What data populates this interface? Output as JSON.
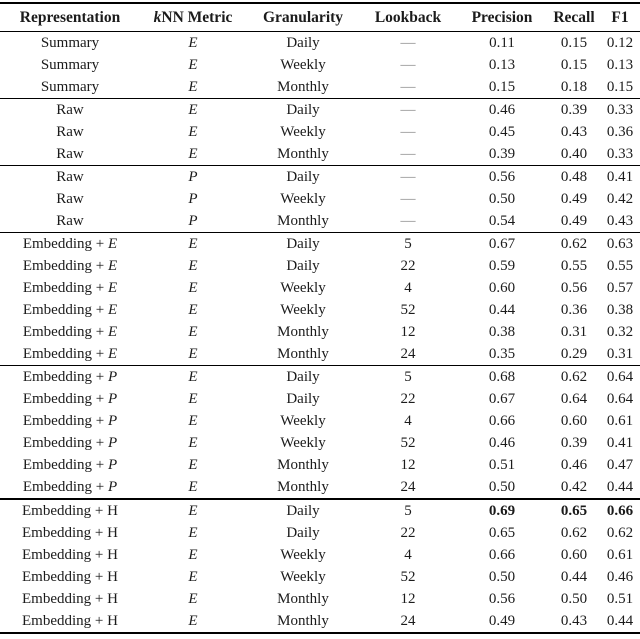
{
  "page": {
    "background": "#ffffff",
    "text_color": "#1b1b1b",
    "rule_color": "#000000",
    "dash_color": "#8a8a8a"
  },
  "table": {
    "em_dash": "—",
    "columns": [
      {
        "italic_prefix": "",
        "label": "Representation"
      },
      {
        "italic_prefix": "k",
        "label": "NN Metric"
      },
      {
        "italic_prefix": "",
        "label": "Granularity"
      },
      {
        "italic_prefix": "",
        "label": "Lookback"
      },
      {
        "italic_prefix": "",
        "label": "Precision"
      },
      {
        "italic_prefix": "",
        "label": "Recall"
      },
      {
        "italic_prefix": "",
        "label": "F1"
      }
    ],
    "groups": [
      {
        "rows": [
          {
            "rep": "Summary",
            "rep_italic": "",
            "metric": "E",
            "granularity": "Daily",
            "lookback": "—",
            "precision": "0.11",
            "recall": "0.15",
            "f1": "0.12",
            "bold_metrics": false
          },
          {
            "rep": "Summary",
            "rep_italic": "",
            "metric": "E",
            "granularity": "Weekly",
            "lookback": "—",
            "precision": "0.13",
            "recall": "0.15",
            "f1": "0.13",
            "bold_metrics": false
          },
          {
            "rep": "Summary",
            "rep_italic": "",
            "metric": "E",
            "granularity": "Monthly",
            "lookback": "—",
            "precision": "0.15",
            "recall": "0.18",
            "f1": "0.15",
            "bold_metrics": false
          }
        ]
      },
      {
        "rows": [
          {
            "rep": "Raw",
            "rep_italic": "",
            "metric": "E",
            "granularity": "Daily",
            "lookback": "—",
            "precision": "0.46",
            "recall": "0.39",
            "f1": "0.33",
            "bold_metrics": false
          },
          {
            "rep": "Raw",
            "rep_italic": "",
            "metric": "E",
            "granularity": "Weekly",
            "lookback": "—",
            "precision": "0.45",
            "recall": "0.43",
            "f1": "0.36",
            "bold_metrics": false
          },
          {
            "rep": "Raw",
            "rep_italic": "",
            "metric": "E",
            "granularity": "Monthly",
            "lookback": "—",
            "precision": "0.39",
            "recall": "0.40",
            "f1": "0.33",
            "bold_metrics": false
          }
        ]
      },
      {
        "rows": [
          {
            "rep": "Raw",
            "rep_italic": "",
            "metric": "P",
            "granularity": "Daily",
            "lookback": "—",
            "precision": "0.56",
            "recall": "0.48",
            "f1": "0.41",
            "bold_metrics": false
          },
          {
            "rep": "Raw",
            "rep_italic": "",
            "metric": "P",
            "granularity": "Weekly",
            "lookback": "—",
            "precision": "0.50",
            "recall": "0.49",
            "f1": "0.42",
            "bold_metrics": false
          },
          {
            "rep": "Raw",
            "rep_italic": "",
            "metric": "P",
            "granularity": "Monthly",
            "lookback": "—",
            "precision": "0.54",
            "recall": "0.49",
            "f1": "0.43",
            "bold_metrics": false
          }
        ]
      },
      {
        "rows": [
          {
            "rep": "Embedding + ",
            "rep_italic": "E",
            "metric": "E",
            "granularity": "Daily",
            "lookback": "5",
            "precision": "0.67",
            "recall": "0.62",
            "f1": "0.63",
            "bold_metrics": false
          },
          {
            "rep": "Embedding + ",
            "rep_italic": "E",
            "metric": "E",
            "granularity": "Daily",
            "lookback": "22",
            "precision": "0.59",
            "recall": "0.55",
            "f1": "0.55",
            "bold_metrics": false
          },
          {
            "rep": "Embedding + ",
            "rep_italic": "E",
            "metric": "E",
            "granularity": "Weekly",
            "lookback": "4",
            "precision": "0.60",
            "recall": "0.56",
            "f1": "0.57",
            "bold_metrics": false
          },
          {
            "rep": "Embedding + ",
            "rep_italic": "E",
            "metric": "E",
            "granularity": "Weekly",
            "lookback": "52",
            "precision": "0.44",
            "recall": "0.36",
            "f1": "0.38",
            "bold_metrics": false
          },
          {
            "rep": "Embedding + ",
            "rep_italic": "E",
            "metric": "E",
            "granularity": "Monthly",
            "lookback": "12",
            "precision": "0.38",
            "recall": "0.31",
            "f1": "0.32",
            "bold_metrics": false
          },
          {
            "rep": "Embedding + ",
            "rep_italic": "E",
            "metric": "E",
            "granularity": "Monthly",
            "lookback": "24",
            "precision": "0.35",
            "recall": "0.29",
            "f1": "0.31",
            "bold_metrics": false
          }
        ]
      },
      {
        "rows": [
          {
            "rep": "Embedding + ",
            "rep_italic": "P",
            "metric": "E",
            "granularity": "Daily",
            "lookback": "5",
            "precision": "0.68",
            "recall": "0.62",
            "f1": "0.64",
            "bold_metrics": false
          },
          {
            "rep": "Embedding + ",
            "rep_italic": "P",
            "metric": "E",
            "granularity": "Daily",
            "lookback": "22",
            "precision": "0.67",
            "recall": "0.64",
            "f1": "0.64",
            "bold_metrics": false
          },
          {
            "rep": "Embedding + ",
            "rep_italic": "P",
            "metric": "E",
            "granularity": "Weekly",
            "lookback": "4",
            "precision": "0.66",
            "recall": "0.60",
            "f1": "0.61",
            "bold_metrics": false
          },
          {
            "rep": "Embedding + ",
            "rep_italic": "P",
            "metric": "E",
            "granularity": "Weekly",
            "lookback": "52",
            "precision": "0.46",
            "recall": "0.39",
            "f1": "0.41",
            "bold_metrics": false
          },
          {
            "rep": "Embedding + ",
            "rep_italic": "P",
            "metric": "E",
            "granularity": "Monthly",
            "lookback": "12",
            "precision": "0.51",
            "recall": "0.46",
            "f1": "0.47",
            "bold_metrics": false
          },
          {
            "rep": "Embedding + ",
            "rep_italic": "P",
            "metric": "E",
            "granularity": "Monthly",
            "lookback": "24",
            "precision": "0.50",
            "recall": "0.42",
            "f1": "0.44",
            "bold_metrics": false
          }
        ]
      },
      {
        "rows": [
          {
            "rep": "Embedding + H",
            "rep_italic": "",
            "metric": "E",
            "granularity": "Daily",
            "lookback": "5",
            "precision": "0.69",
            "recall": "0.65",
            "f1": "0.66",
            "bold_metrics": true
          },
          {
            "rep": "Embedding + H",
            "rep_italic": "",
            "metric": "E",
            "granularity": "Daily",
            "lookback": "22",
            "precision": "0.65",
            "recall": "0.62",
            "f1": "0.62",
            "bold_metrics": false
          },
          {
            "rep": "Embedding + H",
            "rep_italic": "",
            "metric": "E",
            "granularity": "Weekly",
            "lookback": "4",
            "precision": "0.66",
            "recall": "0.60",
            "f1": "0.61",
            "bold_metrics": false
          },
          {
            "rep": "Embedding + H",
            "rep_italic": "",
            "metric": "E",
            "granularity": "Weekly",
            "lookback": "52",
            "precision": "0.50",
            "recall": "0.44",
            "f1": "0.46",
            "bold_metrics": false
          },
          {
            "rep": "Embedding + H",
            "rep_italic": "",
            "metric": "E",
            "granularity": "Monthly",
            "lookback": "12",
            "precision": "0.56",
            "recall": "0.50",
            "f1": "0.51",
            "bold_metrics": false
          },
          {
            "rep": "Embedding + H",
            "rep_italic": "",
            "metric": "E",
            "granularity": "Monthly",
            "lookback": "24",
            "precision": "0.49",
            "recall": "0.43",
            "f1": "0.44",
            "bold_metrics": false
          }
        ]
      }
    ]
  }
}
